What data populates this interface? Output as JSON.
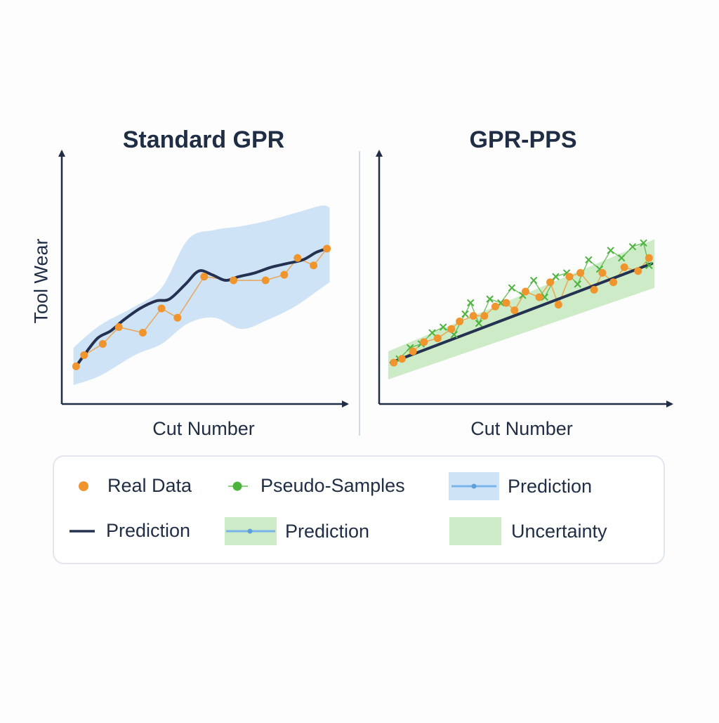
{
  "colors": {
    "axis": "#1f2d45",
    "real": "#f0952e",
    "pseudo": "#4cb33c",
    "blue_band": "#cfe3f7",
    "green_band": "#cdebc6",
    "line": "#243150",
    "pred_blue_line": "#7ab4e8"
  },
  "chart_data": [
    {
      "type": "line",
      "title": "Standard GPR",
      "xlabel": "Cut Number",
      "ylabel": "Tool Wear",
      "xlim": [
        0,
        100
      ],
      "ylim": [
        0,
        100
      ],
      "grid": false,
      "series": [
        {
          "name": "Prediction",
          "kind": "line",
          "x": [
            3,
            6,
            11,
            16,
            21,
            27,
            33,
            38,
            44,
            49,
            54,
            59,
            64,
            70,
            76,
            82,
            88,
            93,
            97
          ],
          "y": [
            10,
            16,
            25,
            29,
            35,
            41,
            45,
            46,
            54,
            61,
            59,
            56,
            58,
            60,
            63,
            65,
            67,
            71,
            73
          ]
        },
        {
          "name": "Real Data",
          "kind": "scatter",
          "x": [
            3,
            6,
            13,
            19,
            28,
            35,
            41,
            51,
            62,
            74,
            81,
            86,
            92,
            97
          ],
          "y": [
            10,
            16,
            22,
            31,
            28,
            41,
            36,
            58,
            56,
            56,
            59,
            68,
            64,
            73
          ]
        },
        {
          "name": "Uncertainty",
          "kind": "band",
          "x": [
            2,
            12,
            25,
            35,
            45,
            55,
            65,
            75,
            85,
            95,
            98
          ],
          "upper": [
            20,
            32,
            42,
            52,
            78,
            83,
            85,
            88,
            92,
            96,
            95
          ],
          "lower": [
            0,
            5,
            16,
            22,
            33,
            36,
            30,
            35,
            42,
            52,
            55
          ]
        }
      ]
    },
    {
      "type": "line",
      "title": "GPR-PPS",
      "xlabel": "Cut Number",
      "ylabel": "",
      "xlim": [
        0,
        100
      ],
      "ylim": [
        0,
        100
      ],
      "grid": false,
      "series": [
        {
          "name": "Prediction",
          "kind": "line",
          "x": [
            2,
            97
          ],
          "y": [
            12,
            65
          ]
        },
        {
          "name": "Real Data",
          "kind": "scatter",
          "x": [
            3,
            6,
            10,
            14,
            19,
            24,
            27,
            32,
            36,
            40,
            44,
            47,
            51,
            56,
            60,
            63,
            67,
            71,
            76,
            79,
            83,
            87,
            92,
            96
          ],
          "y": [
            12,
            14,
            18,
            23,
            25,
            30,
            34,
            37,
            37,
            42,
            44,
            40,
            50,
            47,
            55,
            43,
            58,
            60,
            51,
            60,
            55,
            63,
            61,
            68
          ]
        },
        {
          "name": "Pseudo-Samples",
          "kind": "scatter",
          "x": [
            5,
            9,
            13,
            17,
            21,
            25,
            29,
            31,
            34,
            38,
            42,
            46,
            50,
            54,
            58,
            62,
            66,
            70,
            74,
            78,
            82,
            86,
            90,
            94,
            96
          ],
          "y": [
            14,
            20,
            22,
            28,
            31,
            27,
            38,
            44,
            33,
            46,
            44,
            52,
            48,
            56,
            47,
            58,
            60,
            54,
            67,
            62,
            72,
            68,
            74,
            76,
            64
          ]
        },
        {
          "name": "Uncertainty",
          "kind": "band",
          "x": [
            1,
            98
          ],
          "upper": [
            18,
            78
          ],
          "lower": [
            3,
            52
          ]
        }
      ]
    }
  ],
  "legend": {
    "items": [
      {
        "label": "Real Data"
      },
      {
        "label": "Pseudo-Samples"
      },
      {
        "label": "Prediction"
      },
      {
        "label": "Prediction"
      },
      {
        "label": "Prediction"
      },
      {
        "label": "Uncertainty"
      }
    ]
  }
}
